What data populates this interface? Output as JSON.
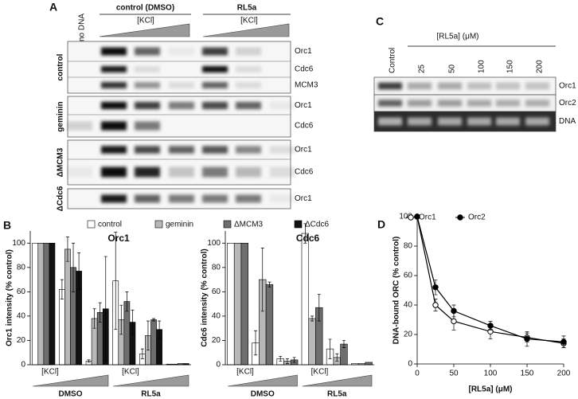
{
  "panel_labels": [
    "A",
    "B",
    "C",
    "D"
  ],
  "panel_a": {
    "no_dna": "no DNA",
    "treatments": [
      {
        "name": "control (DMSO)",
        "ramp": "[KCl]"
      },
      {
        "name": "RL5a",
        "ramp": "[KCl]"
      }
    ],
    "blocks": [
      {
        "name": "control",
        "rows": [
          "Orc1",
          "Cdc6",
          "MCM3"
        ]
      },
      {
        "name": "geminin",
        "rows": [
          "Orc1",
          "Cdc6"
        ]
      },
      {
        "name": "ΔMCM3",
        "rows": [
          "Orc1",
          "Cdc6"
        ]
      },
      {
        "name": "ΔCdc6",
        "rows": [
          "Orc1"
        ]
      }
    ]
  },
  "panel_c": {
    "control": "Control",
    "dose_label": "[RL5a] (μM)",
    "doses": [
      25,
      50,
      100,
      150,
      200
    ],
    "rows": [
      "Orc1",
      "Orc2",
      "DNA"
    ]
  },
  "chart_data": [
    {
      "type": "bar",
      "title": "Orc1",
      "y_label": "Orc1 intensity (% control)",
      "categories": [
        null,
        null,
        null,
        null,
        null,
        null
      ],
      "x_groups": [
        "DMSO",
        "RL5a"
      ],
      "x_ramp_label": "[KCl]",
      "ylim": [
        0,
        110
      ],
      "yticks": [
        0,
        20,
        40,
        60,
        80,
        100
      ],
      "legend": "top",
      "series": [
        {
          "name": "control",
          "color": "#ffffff",
          "values": [
            100,
            62,
            3,
            69,
            9,
            0.5
          ],
          "errors": [
            null,
            8,
            1,
            40,
            4,
            null
          ]
        },
        {
          "name": "geminin",
          "color": "#b8b8b8",
          "values": [
            100,
            95,
            38,
            37,
            24,
            0.5
          ],
          "errors": [
            null,
            10,
            8,
            12,
            12,
            null
          ]
        },
        {
          "name": "ΔMCM3",
          "color": "#6e6e6e",
          "values": [
            100,
            80,
            43,
            52,
            37,
            1
          ],
          "errors": [
            null,
            20,
            8,
            8,
            1,
            null
          ]
        },
        {
          "name": "ΔCdc6",
          "color": "#111111",
          "values": [
            100,
            77,
            46,
            35,
            29,
            1
          ],
          "errors": [
            null,
            15,
            43,
            10,
            7,
            null
          ]
        }
      ]
    },
    {
      "type": "bar",
      "title": "Cdc6",
      "y_label": "Cdc6 intensity (% control)",
      "categories": [
        null,
        null,
        null,
        null,
        null,
        null
      ],
      "x_groups": [
        "DMSO",
        "RL5a"
      ],
      "x_ramp_label": "[KCl]",
      "ylim": [
        0,
        110
      ],
      "yticks": [
        0,
        20,
        40,
        60,
        80,
        100
      ],
      "series": [
        {
          "color": "#ffffff",
          "values": [
            100,
            18,
            5,
            108,
            13,
            1
          ],
          "errors": [
            null,
            10,
            2,
            8,
            8,
            null
          ]
        },
        {
          "color": "#b8b8b8",
          "values": [
            100,
            70,
            3,
            38,
            6,
            1
          ],
          "errors": [
            null,
            26,
            2,
            2,
            3,
            null
          ]
        },
        {
          "color": "#6e6e6e",
          "values": [
            100,
            66,
            4,
            47,
            17,
            2
          ],
          "errors": [
            null,
            2,
            2,
            11,
            3,
            null
          ]
        }
      ]
    },
    {
      "type": "line",
      "x_label": "[RL5a] (μM)",
      "y_label": "DNA-bound ORC (% control)",
      "x": [
        0,
        25,
        50,
        100,
        150,
        200
      ],
      "xlim": [
        0,
        200
      ],
      "xticks": [
        0,
        50,
        100,
        150,
        200
      ],
      "ylim": [
        0,
        100
      ],
      "yticks": [
        0,
        20,
        40,
        60,
        80,
        100
      ],
      "legend": "top",
      "series": [
        {
          "name": "Orc1",
          "color": "#000000",
          "marker": "open",
          "values": [
            100,
            40,
            29,
            22,
            18,
            14
          ],
          "errors": [
            null,
            4,
            6,
            5,
            3,
            3
          ]
        },
        {
          "name": "Orc2",
          "color": "#000000",
          "marker": "filled",
          "values": [
            100,
            52,
            36,
            26,
            17,
            15
          ],
          "errors": [
            null,
            5,
            4,
            3,
            5,
            4
          ]
        }
      ]
    }
  ]
}
